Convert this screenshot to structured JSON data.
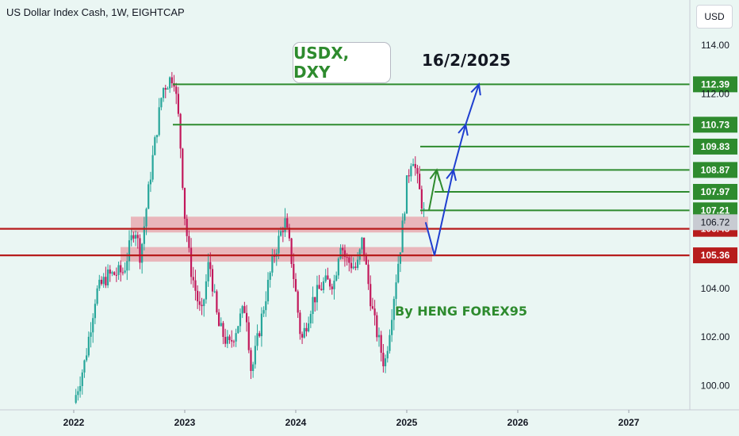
{
  "header": {
    "title": "US Dollar Index Cash, 1W, EIGHTCAP"
  },
  "toolbar": {
    "currency_label": "USD"
  },
  "annotations": {
    "symbol": "USDX, DXY",
    "date": "16/2/2025",
    "author": "By HENG FOREX95"
  },
  "colors": {
    "background": "#eaf6f3",
    "up_candle": "#26a69a",
    "down_candle": "#c2185b",
    "target_line": "#2e8b2e",
    "support_line": "#b71c1c",
    "zone_fill": "#e8a0a8",
    "arrow_blue": "#1f3fd0",
    "arrow_green": "#2e8b2e",
    "current_price_tag": "#c8cbd2"
  },
  "chart_data": {
    "type": "candlestick",
    "title": "US Dollar Index Cash, 1W, EIGHTCAP",
    "x_tick_labels": [
      "2022",
      "2023",
      "2024",
      "2025",
      "2026",
      "2027"
    ],
    "y_tick_labels": [
      "100.00",
      "102.00",
      "104.00",
      "112.00",
      "114.00"
    ],
    "y_range": [
      99.4,
      115.4
    ],
    "target_levels": [
      {
        "label": "112.39",
        "value": 112.39
      },
      {
        "label": "110.73",
        "value": 110.73
      },
      {
        "label": "109.83",
        "value": 109.83
      },
      {
        "label": "108.87",
        "value": 108.87
      },
      {
        "label": "107.97",
        "value": 107.97
      },
      {
        "label": "107.21",
        "value": 107.21
      }
    ],
    "current_price": {
      "label": "106.72",
      "value": 106.72
    },
    "support_levels": [
      {
        "label": "106.45",
        "value": 106.45
      },
      {
        "label": "105.36",
        "value": 105.36
      }
    ],
    "zones": [
      {
        "low": 106.3,
        "high": 106.95
      },
      {
        "low": 105.1,
        "high": 105.7
      }
    ],
    "price_path": [
      {
        "t": 2022.0,
        "p": 99.3
      },
      {
        "t": 2022.1,
        "p": 101.0
      },
      {
        "t": 2022.2,
        "p": 103.8
      },
      {
        "t": 2022.3,
        "p": 104.5
      },
      {
        "t": 2022.45,
        "p": 104.7
      },
      {
        "t": 2022.55,
        "p": 106.6
      },
      {
        "t": 2022.6,
        "p": 105.3
      },
      {
        "t": 2022.7,
        "p": 109.0
      },
      {
        "t": 2022.8,
        "p": 112.2
      },
      {
        "t": 2022.9,
        "p": 112.8
      },
      {
        "t": 2022.95,
        "p": 110.7
      },
      {
        "t": 2023.0,
        "p": 107.0
      },
      {
        "t": 2023.05,
        "p": 104.9
      },
      {
        "t": 2023.15,
        "p": 102.8
      },
      {
        "t": 2023.22,
        "p": 105.2
      },
      {
        "t": 2023.3,
        "p": 102.5
      },
      {
        "t": 2023.4,
        "p": 101.6
      },
      {
        "t": 2023.5,
        "p": 102.8
      },
      {
        "t": 2023.55,
        "p": 103.3
      },
      {
        "t": 2023.6,
        "p": 100.5
      },
      {
        "t": 2023.7,
        "p": 103.0
      },
      {
        "t": 2023.8,
        "p": 105.3
      },
      {
        "t": 2023.9,
        "p": 106.8
      },
      {
        "t": 2023.95,
        "p": 105.6
      },
      {
        "t": 2024.0,
        "p": 103.8
      },
      {
        "t": 2024.05,
        "p": 101.8
      },
      {
        "t": 2024.15,
        "p": 103.5
      },
      {
        "t": 2024.25,
        "p": 104.2
      },
      {
        "t": 2024.35,
        "p": 104.3
      },
      {
        "t": 2024.4,
        "p": 106.0
      },
      {
        "t": 2024.45,
        "p": 105.2
      },
      {
        "t": 2024.55,
        "p": 104.8
      },
      {
        "t": 2024.6,
        "p": 106.0
      },
      {
        "t": 2024.65,
        "p": 104.3
      },
      {
        "t": 2024.7,
        "p": 102.8
      },
      {
        "t": 2024.75,
        "p": 101.8
      },
      {
        "t": 2024.8,
        "p": 100.8
      },
      {
        "t": 2024.85,
        "p": 102.5
      },
      {
        "t": 2024.9,
        "p": 104.3
      },
      {
        "t": 2024.95,
        "p": 106.0
      },
      {
        "t": 2025.0,
        "p": 108.3
      },
      {
        "t": 2025.05,
        "p": 109.6
      },
      {
        "t": 2025.1,
        "p": 108.3
      },
      {
        "t": 2025.15,
        "p": 107.2
      },
      {
        "t": 2025.17,
        "p": 106.7
      }
    ],
    "projection_blue": [
      {
        "t": 2025.17,
        "p": 106.72
      },
      {
        "t": 2025.25,
        "p": 105.36
      },
      {
        "t": 2025.42,
        "p": 108.87
      },
      {
        "t": 2025.53,
        "p": 110.73
      },
      {
        "t": 2025.65,
        "p": 112.39
      }
    ],
    "projection_green": [
      {
        "t": 2025.2,
        "p": 107.21
      },
      {
        "t": 2025.27,
        "p": 108.87
      },
      {
        "t": 2025.33,
        "p": 107.97
      }
    ]
  }
}
